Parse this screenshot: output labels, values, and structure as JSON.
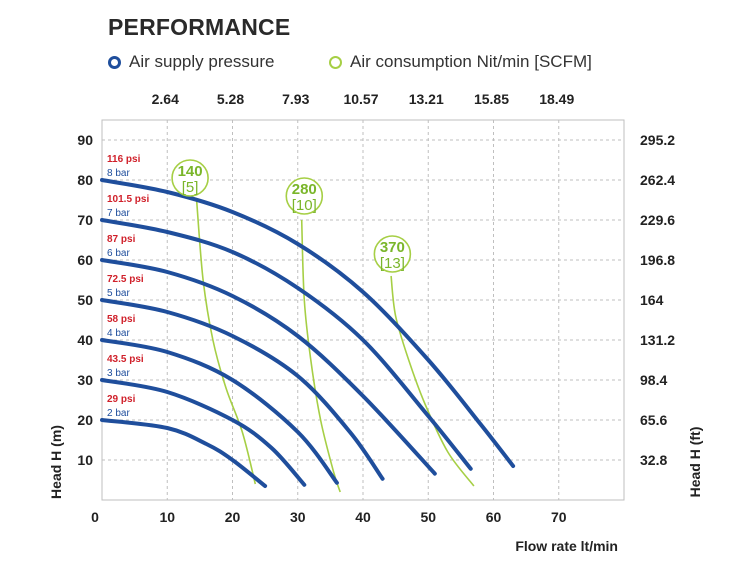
{
  "title": "PERFORMANCE",
  "legend": {
    "air_supply": "Air supply pressure",
    "air_consumption": "Air consumption Nit/min [SCFM]"
  },
  "colors": {
    "blue": "#1f4e9c",
    "green": "#a6cf45",
    "green_text": "#7ab62a",
    "red": "#d0202a",
    "grid": "#bfbfbf"
  },
  "chart_data": {
    "type": "line",
    "xlabel": "Flow rate lt/min",
    "ylabel": "Head H (m)",
    "y2label": "Head H (ft)",
    "xlim": [
      0,
      80
    ],
    "ylim": [
      0,
      95
    ],
    "x_ticks": [
      0,
      10,
      20,
      30,
      40,
      50,
      60,
      70
    ],
    "y_ticks": [
      10,
      20,
      30,
      40,
      50,
      60,
      70,
      80,
      90
    ],
    "y2_ticks": [
      "32.8",
      "65.6",
      "98.4",
      "131.2",
      "164",
      "196.8",
      "229.6",
      "262.4",
      "295.2"
    ],
    "top_ticks": [
      "2.64",
      "5.28",
      "7.93",
      "10.57",
      "13.21",
      "15.85",
      "18.49"
    ],
    "grid": true,
    "series": [
      {
        "name": "2 bar",
        "psi": "29 psi",
        "points": [
          [
            0,
            20
          ],
          [
            10,
            18
          ],
          [
            16,
            14
          ],
          [
            20,
            10
          ],
          [
            25,
            3.5
          ]
        ]
      },
      {
        "name": "3 bar",
        "psi": "43.5 psi",
        "points": [
          [
            0,
            30
          ],
          [
            10,
            27
          ],
          [
            20,
            20
          ],
          [
            26,
            13
          ],
          [
            31,
            3.8
          ]
        ]
      },
      {
        "name": "4 bar",
        "psi": "58 psi",
        "points": [
          [
            0,
            40
          ],
          [
            10,
            37
          ],
          [
            20,
            30
          ],
          [
            30,
            17
          ],
          [
            36,
            4.3
          ]
        ]
      },
      {
        "name": "5 bar",
        "psi": "72.5 psi",
        "points": [
          [
            0,
            50
          ],
          [
            10,
            47
          ],
          [
            20,
            41
          ],
          [
            30,
            31
          ],
          [
            38,
            17
          ],
          [
            43,
            5.3
          ]
        ]
      },
      {
        "name": "6 bar",
        "psi": "87 psi",
        "points": [
          [
            0,
            60
          ],
          [
            10,
            57
          ],
          [
            20,
            51
          ],
          [
            30,
            41
          ],
          [
            40,
            26
          ],
          [
            51,
            6.6
          ]
        ]
      },
      {
        "name": "7 bar",
        "psi": "101.5 psi",
        "points": [
          [
            0,
            70
          ],
          [
            10,
            67
          ],
          [
            20,
            62
          ],
          [
            30,
            53
          ],
          [
            40,
            40
          ],
          [
            50,
            21
          ],
          [
            56.5,
            7.8
          ]
        ]
      },
      {
        "name": "8 bar",
        "psi": "116 psi",
        "points": [
          [
            0,
            80
          ],
          [
            10,
            77
          ],
          [
            20,
            72
          ],
          [
            30,
            64
          ],
          [
            40,
            52
          ],
          [
            50,
            35
          ],
          [
            58,
            19
          ],
          [
            63,
            8.5
          ]
        ]
      }
    ],
    "consumption_curves": [
      {
        "label": "140",
        "scfm": "[5]",
        "points": [
          [
            14.5,
            75
          ],
          [
            15.5,
            55
          ],
          [
            17,
            40
          ],
          [
            19,
            28
          ],
          [
            21.5,
            17
          ],
          [
            23.5,
            4
          ]
        ]
      },
      {
        "label": "280",
        "scfm": "[10]",
        "points": [
          [
            30.6,
            70
          ],
          [
            31,
            50
          ],
          [
            32,
            35
          ],
          [
            33.5,
            20
          ],
          [
            35.5,
            7
          ],
          [
            36.5,
            2
          ]
        ]
      },
      {
        "label": "370",
        "scfm": "[13]",
        "points": [
          [
            44.3,
            56
          ],
          [
            45,
            46
          ],
          [
            47,
            35
          ],
          [
            49.5,
            24
          ],
          [
            53,
            12
          ],
          [
            57,
            3.5
          ]
        ]
      }
    ],
    "consumption_labels": [
      {
        "label": "140",
        "scfm": "[5]",
        "at": [
          13.5,
          80.5
        ]
      },
      {
        "label": "280",
        "scfm": "[10]",
        "at": [
          31,
          76
        ]
      },
      {
        "label": "370",
        "scfm": "[13]",
        "at": [
          44.5,
          61.5
        ]
      }
    ]
  }
}
